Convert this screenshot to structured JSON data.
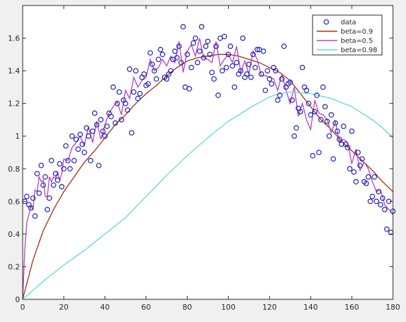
{
  "chart_data": {
    "type": "line",
    "title": "",
    "xlabel": "",
    "ylabel": "",
    "xlim": [
      0,
      180
    ],
    "ylim": [
      0,
      1.8
    ],
    "xticks": [
      0,
      20,
      40,
      60,
      80,
      100,
      120,
      140,
      160,
      180
    ],
    "yticks": [
      0,
      0.2,
      0.4,
      0.6,
      0.8,
      1.0,
      1.2,
      1.4,
      1.6
    ],
    "ytick_labels": [
      "0",
      "0.2",
      "0.4",
      "0.6",
      "0.8",
      "1",
      "1.2",
      "1.4",
      "1.6"
    ],
    "grid": false,
    "legend_position": "top-right",
    "series": [
      {
        "name": "data",
        "kind": "scatter",
        "color": "#1f1fb4",
        "x": [
          1,
          2,
          3,
          4,
          5,
          6,
          7,
          8,
          9,
          10,
          11,
          12,
          13,
          14,
          15,
          16,
          17,
          18,
          19,
          20,
          21,
          22,
          23,
          24,
          25,
          26,
          27,
          28,
          29,
          30,
          31,
          32,
          33,
          34,
          35,
          36,
          37,
          38,
          39,
          40,
          41,
          42,
          43,
          44,
          45,
          46,
          47,
          48,
          49,
          50,
          51,
          52,
          53,
          54,
          55,
          56,
          57,
          58,
          59,
          60,
          61,
          62,
          63,
          64,
          65,
          66,
          67,
          68,
          69,
          70,
          71,
          72,
          73,
          74,
          75,
          76,
          77,
          78,
          79,
          80,
          81,
          82,
          83,
          84,
          85,
          86,
          87,
          88,
          89,
          90,
          91,
          92,
          93,
          94,
          95,
          96,
          97,
          98,
          99,
          100,
          101,
          102,
          103,
          104,
          105,
          106,
          107,
          108,
          109,
          110,
          111,
          112,
          113,
          114,
          115,
          116,
          117,
          118,
          119,
          120,
          121,
          122,
          123,
          124,
          125,
          126,
          127,
          128,
          129,
          130,
          131,
          132,
          133,
          134,
          135,
          136,
          137,
          138,
          139,
          140,
          141,
          142,
          143,
          144,
          145,
          146,
          147,
          148,
          149,
          150,
          151,
          152,
          153,
          154,
          155,
          156,
          157,
          158,
          159,
          160,
          161,
          162,
          163,
          164,
          165,
          166,
          167,
          168,
          169,
          170,
          171,
          172,
          173,
          174,
          175,
          176,
          177,
          178,
          179,
          180
        ],
        "y": [
          0.6,
          0.63,
          0.58,
          0.56,
          0.62,
          0.51,
          0.77,
          0.65,
          0.82,
          0.7,
          0.75,
          0.55,
          0.62,
          0.85,
          0.7,
          0.77,
          0.73,
          0.83,
          0.69,
          0.8,
          0.94,
          0.85,
          0.8,
          1.0,
          0.85,
          0.98,
          0.92,
          1.01,
          0.95,
          0.9,
          1.05,
          1.0,
          0.85,
          1.03,
          1.14,
          1.07,
          0.82,
          1.1,
          1.03,
          1.0,
          1.06,
          1.14,
          1.12,
          1.3,
          1.08,
          1.2,
          1.27,
          1.1,
          1.22,
          1.2,
          1.16,
          1.41,
          1.02,
          1.27,
          1.4,
          1.23,
          1.26,
          1.36,
          1.38,
          1.31,
          1.32,
          1.51,
          1.44,
          1.4,
          1.35,
          1.47,
          1.53,
          1.5,
          1.36,
          1.35,
          1.38,
          1.4,
          1.47,
          1.52,
          1.48,
          1.55,
          1.45,
          1.67,
          1.3,
          1.5,
          1.29,
          1.42,
          1.57,
          1.6,
          1.45,
          1.52,
          1.67,
          1.48,
          1.55,
          1.58,
          1.5,
          1.39,
          1.35,
          1.55,
          1.25,
          1.6,
          1.4,
          1.61,
          1.42,
          1.5,
          1.55,
          1.43,
          1.3,
          1.45,
          1.38,
          1.4,
          1.6,
          1.36,
          1.38,
          1.44,
          1.36,
          1.5,
          1.42,
          1.53,
          1.53,
          1.38,
          1.52,
          1.28,
          1.4,
          1.35,
          1.32,
          1.42,
          1.4,
          1.22,
          1.25,
          1.35,
          1.55,
          1.3,
          1.32,
          1.33,
          1.22,
          1.0,
          1.05,
          1.17,
          1.15,
          1.42,
          1.3,
          1.28,
          1.2,
          1.13,
          0.88,
          1.15,
          1.25,
          0.9,
          1.1,
          1.3,
          1.18,
          1.09,
          1.0,
          1.13,
          0.86,
          1.08,
          1.03,
          0.98,
          0.95,
          1.06,
          0.95,
          0.93,
          0.8,
          1.03,
          0.78,
          0.72,
          0.9,
          0.82,
          0.86,
          0.72,
          0.71,
          0.75,
          0.6,
          0.63,
          0.75,
          0.6,
          0.66,
          0.58,
          0.62,
          0.55,
          0.43,
          0.6,
          0.41,
          0.54
        ]
      },
      {
        "name": "beta=0.9",
        "kind": "line",
        "color": "#a52a0f",
        "x": [
          0,
          5,
          10,
          15,
          20,
          25,
          30,
          35,
          40,
          45,
          50,
          55,
          60,
          65,
          70,
          75,
          80,
          85,
          90,
          95,
          100,
          105,
          110,
          115,
          120,
          125,
          130,
          135,
          140,
          145,
          150,
          155,
          160,
          165,
          170,
          175,
          180
        ],
        "y": [
          0,
          0.24,
          0.42,
          0.55,
          0.66,
          0.75,
          0.84,
          0.91,
          0.99,
          1.07,
          1.13,
          1.2,
          1.26,
          1.31,
          1.37,
          1.42,
          1.46,
          1.48,
          1.49,
          1.5,
          1.5,
          1.49,
          1.47,
          1.45,
          1.42,
          1.39,
          1.34,
          1.26,
          1.18,
          1.1,
          1.04,
          0.97,
          0.91,
          0.85,
          0.79,
          0.72,
          0.66
        ]
      },
      {
        "name": "beta=0.5",
        "kind": "line",
        "color": "#b040c8",
        "x": [
          0,
          1,
          2,
          3,
          4,
          5,
          6,
          7,
          8,
          9,
          10,
          11,
          12,
          13,
          14,
          15,
          16,
          17,
          18,
          19,
          20,
          22,
          24,
          26,
          28,
          30,
          32,
          34,
          36,
          38,
          40,
          42,
          44,
          46,
          48,
          50,
          52,
          54,
          56,
          58,
          60,
          62,
          64,
          66,
          68,
          70,
          72,
          74,
          76,
          78,
          80,
          82,
          84,
          86,
          88,
          90,
          92,
          94,
          96,
          98,
          100,
          102,
          104,
          106,
          108,
          110,
          112,
          114,
          116,
          118,
          120,
          122,
          124,
          126,
          128,
          130,
          132,
          134,
          136,
          138,
          140,
          142,
          144,
          146,
          148,
          150,
          152,
          154,
          156,
          158,
          160,
          162,
          164,
          166,
          168,
          170,
          172,
          174,
          176,
          178,
          180
        ],
        "y": [
          0,
          0.3,
          0.47,
          0.52,
          0.57,
          0.55,
          0.67,
          0.66,
          0.75,
          0.72,
          0.73,
          0.63,
          0.63,
          0.75,
          0.72,
          0.75,
          0.74,
          0.78,
          0.73,
          0.77,
          0.86,
          0.85,
          0.93,
          0.96,
          1.0,
          0.94,
          1.06,
          0.96,
          1.09,
          0.98,
          1.07,
          1.14,
          1.18,
          1.21,
          1.13,
          1.28,
          1.23,
          1.36,
          1.3,
          1.34,
          1.36,
          1.47,
          1.4,
          1.42,
          1.47,
          1.43,
          1.49,
          1.45,
          1.58,
          1.39,
          1.52,
          1.56,
          1.49,
          1.6,
          1.48,
          1.47,
          1.45,
          1.58,
          1.43,
          1.47,
          1.5,
          1.45,
          1.55,
          1.39,
          1.46,
          1.38,
          1.52,
          1.47,
          1.37,
          1.37,
          1.36,
          1.35,
          1.28,
          1.38,
          1.28,
          1.2,
          1.3,
          1.12,
          1.2,
          1.1,
          1.04,
          1.22,
          1.14,
          1.13,
          1.1,
          1.02,
          1.09,
          0.96,
          0.98,
          0.96,
          0.83,
          0.92,
          0.79,
          0.84,
          0.8,
          0.72,
          0.66,
          0.67,
          0.58,
          0.55,
          0.52
        ]
      },
      {
        "name": "beta=0.98",
        "kind": "line",
        "color": "#5fd8d8",
        "x": [
          0,
          10,
          20,
          30,
          40,
          50,
          60,
          70,
          80,
          90,
          100,
          110,
          120,
          125,
          130,
          140,
          150,
          160,
          170,
          175,
          180
        ],
        "y": [
          0,
          0.11,
          0.21,
          0.3,
          0.4,
          0.5,
          0.63,
          0.76,
          0.88,
          0.99,
          1.09,
          1.17,
          1.24,
          1.26,
          1.27,
          1.26,
          1.23,
          1.18,
          1.1,
          1.05,
          0.99
        ]
      }
    ]
  }
}
